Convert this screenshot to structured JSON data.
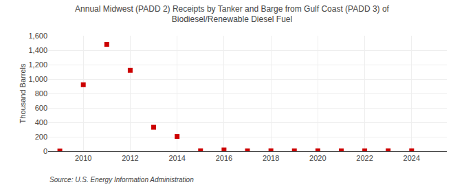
{
  "chart_data": {
    "type": "scatter",
    "title": "Annual Midwest (PADD 2) Receipts by Tanker and Barge from Gulf Coast (PADD 3) of\nBiodiesel/Renewable Diesel Fuel",
    "ylabel": "Thousand Barrels",
    "annotation": "Source: U.S. Energy Information Administration",
    "x": [
      2009,
      2010,
      2011,
      2012,
      2013,
      2014,
      2015,
      2016,
      2017,
      2018,
      2019,
      2020,
      2021,
      2022,
      2023,
      2024
    ],
    "values": [
      2,
      921,
      1481,
      1121,
      332,
      204,
      5,
      18,
      4,
      5,
      4,
      5,
      4,
      4,
      5,
      5
    ],
    "color": "#cc0000",
    "marker": "square",
    "xlim": [
      2008.5,
      2025.5
    ],
    "xticks": [
      2010,
      2012,
      2014,
      2016,
      2018,
      2020,
      2022,
      2024
    ],
    "ylim": [
      0,
      1600
    ],
    "yticks": [
      0,
      200,
      400,
      600,
      800,
      {
        "value": 1000,
        "label": "1,000"
      },
      {
        "value": 1200,
        "label": "1,200"
      },
      {
        "value": 1400,
        "label": "1,400"
      },
      {
        "value": 1600,
        "label": "1,600"
      }
    ],
    "grid": true
  }
}
